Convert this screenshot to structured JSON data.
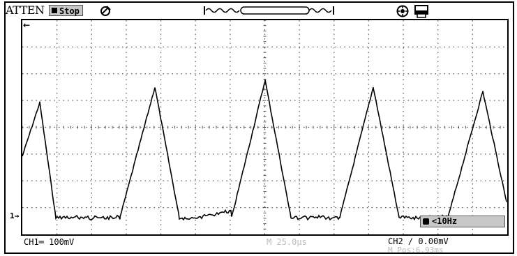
{
  "header": {
    "brand": "ATTEN",
    "run_state": "Stop",
    "icons": [
      "probe-icon",
      "timebase-window-icon",
      "disk-icon",
      "printer-icon"
    ]
  },
  "graticule": {
    "divisions_x": 14,
    "divisions_y": 8,
    "trace_color": "#000000"
  },
  "waveform": {
    "shape": "triangle pulses",
    "peaks": 5
  },
  "markers": {
    "trigger": "←",
    "ch1": "1→"
  },
  "measurement": {
    "frequency": "<10Hz"
  },
  "footer": {
    "ch1": "CH1═ 100mV",
    "timebase": "M 25.0μs",
    "ch2": "CH2 ∕ 0.00mV",
    "mpos": "M Pos:6.93ms"
  },
  "colors": {
    "panel_gray": "#c8c8c8",
    "dim_text": "#bdbdbd"
  }
}
